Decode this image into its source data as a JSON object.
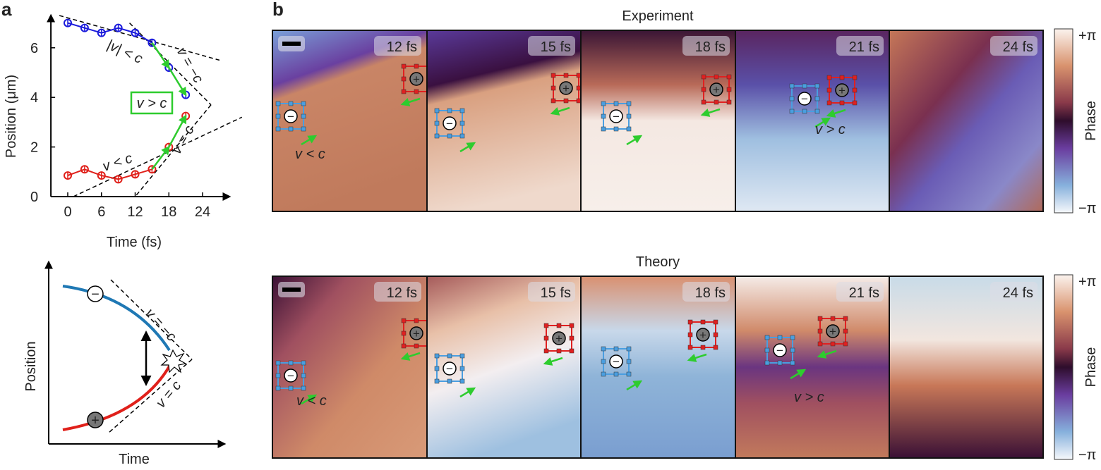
{
  "panel_a_label": "a",
  "panel_b_label": "b",
  "chart_data": {
    "type": "scatter",
    "xlabel": "Time (fs)",
    "ylabel": "Position (μm)",
    "xlim": [
      -3,
      28
    ],
    "ylim": [
      0,
      7.3
    ],
    "xticks": [
      0,
      6,
      12,
      18,
      24
    ],
    "yticks": [
      0,
      2,
      4,
      6
    ],
    "series": [
      {
        "color": "#1a1adb",
        "x": [
          0,
          3,
          6,
          9,
          12,
          15,
          18,
          21
        ],
        "y": [
          7.0,
          6.8,
          6.6,
          6.8,
          6.6,
          6.2,
          5.2,
          4.1
        ],
        "err": 0.15
      },
      {
        "color": "#e0201a",
        "x": [
          0,
          3,
          6,
          9,
          12,
          15,
          18,
          21
        ],
        "y": [
          0.85,
          1.1,
          0.85,
          0.7,
          0.9,
          1.1,
          2.0,
          3.25
        ],
        "err": 0.15
      }
    ],
    "annotations": {
      "upper_slow": "|v| < c",
      "upper_light": "v = −c",
      "box": "v > c",
      "lower_light": "v = c",
      "lower_slow": "v < c"
    },
    "highlight_color": "#2ecc2e"
  },
  "schematic": {
    "xlabel": "Time",
    "ylabel": "Position",
    "upper_line": "v = −c",
    "lower_line": "v = c",
    "minus_symbol": "−",
    "plus_symbol": "+"
  },
  "maps": {
    "rows": [
      {
        "title": "Experiment",
        "frames": [
          "12 fs",
          "15 fs",
          "18 fs",
          "21 fs",
          "24 fs"
        ],
        "note_slow": "v < c",
        "note_fast": "v > c"
      },
      {
        "title": "Theory",
        "frames": [
          "12 fs",
          "15 fs",
          "18 fs",
          "21 fs",
          "24 fs"
        ],
        "note_slow": "v < c",
        "note_fast": "v > c"
      }
    ],
    "colorbar": {
      "top": "+π",
      "bottom": "−π",
      "label": "Phase"
    },
    "minus_symbol": "−",
    "plus_symbol": "+"
  }
}
